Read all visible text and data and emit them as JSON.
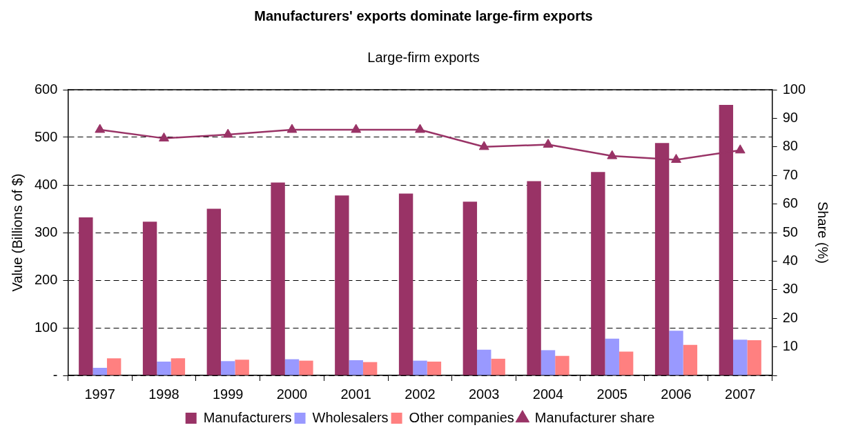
{
  "chart_data": {
    "type": "bar",
    "title": "Manufacturers' exports dominate large-firm exports",
    "subtitle": "Large-firm exports",
    "ylabel": "Value (Billions of $)",
    "y2label": "Share (%)",
    "categories": [
      "1997",
      "1998",
      "1999",
      "2000",
      "2001",
      "2002",
      "2003",
      "2004",
      "2005",
      "2006",
      "2007"
    ],
    "series": [
      {
        "name": "Manufacturers",
        "color": "#993366",
        "values": [
          332,
          323,
          350,
          405,
          378,
          382,
          365,
          408,
          427,
          488,
          568
        ]
      },
      {
        "name": "Wholesalers",
        "color": "#9999ff",
        "values": [
          16,
          29,
          30,
          34,
          32,
          31,
          54,
          53,
          77,
          94,
          75
        ]
      },
      {
        "name": "Other companies",
        "color": "#ff8080",
        "values": [
          36,
          36,
          33,
          31,
          28,
          29,
          35,
          41,
          50,
          64,
          74
        ]
      },
      {
        "name": "Manufacturer share",
        "type": "line",
        "axis": "y2",
        "color": "#993366",
        "marker": "triangle",
        "values": [
          86,
          83,
          84.3,
          86,
          86,
          86,
          80,
          80.8,
          76.8,
          75.5,
          78.8
        ]
      }
    ],
    "ylim": [
      0,
      600
    ],
    "yticks": [
      {
        "value": 0,
        "label": "-"
      },
      100,
      200,
      300,
      400,
      500,
      600
    ],
    "y2lim": [
      0,
      100
    ],
    "y2ticks": [
      {
        "value": 0,
        "label": null
      },
      10,
      20,
      30,
      40,
      50,
      60,
      70,
      80,
      90,
      100
    ],
    "grid": "y",
    "legend": "bottom"
  }
}
